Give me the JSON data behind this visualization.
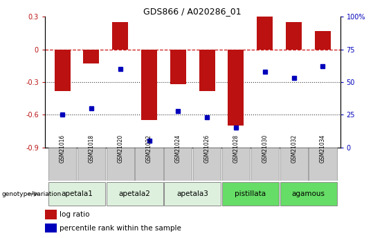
{
  "title": "GDS866 / A020286_01",
  "samples": [
    "GSM21016",
    "GSM21018",
    "GSM21020",
    "GSM21022",
    "GSM21024",
    "GSM21026",
    "GSM21028",
    "GSM21030",
    "GSM21032",
    "GSM21034"
  ],
  "log_ratio": [
    -0.38,
    -0.13,
    0.25,
    -0.65,
    -0.32,
    -0.38,
    -0.7,
    0.3,
    0.25,
    0.17
  ],
  "percentile_rank": [
    25,
    30,
    60,
    5,
    28,
    23,
    15,
    58,
    53,
    62
  ],
  "ylim_left": [
    -0.9,
    0.3
  ],
  "ylim_right": [
    0,
    100
  ],
  "yticks_left": [
    -0.9,
    -0.6,
    -0.3,
    0.0,
    0.3
  ],
  "yticks_right": [
    0,
    25,
    50,
    75,
    100
  ],
  "bar_color": "#bb1111",
  "dot_color": "#0000bb",
  "hline_color": "#cc1111",
  "dotted_line_color": "#333333",
  "groups": [
    {
      "label": "apetala1",
      "start": 0,
      "end": 2,
      "color": "#ddf0dd"
    },
    {
      "label": "apetala2",
      "start": 2,
      "end": 4,
      "color": "#ddf0dd"
    },
    {
      "label": "apetala3",
      "start": 4,
      "end": 6,
      "color": "#ddf0dd"
    },
    {
      "label": "pistillata",
      "start": 6,
      "end": 8,
      "color": "#66dd66"
    },
    {
      "label": "agamous",
      "start": 8,
      "end": 10,
      "color": "#66dd66"
    }
  ],
  "legend_items": [
    {
      "label": "log ratio",
      "color": "#bb1111"
    },
    {
      "label": "percentile rank within the sample",
      "color": "#0000bb"
    }
  ],
  "bar_width": 0.55,
  "dot_size": 4,
  "title_fontsize": 9,
  "tick_fontsize": 7,
  "group_fontsize": 7.5,
  "legend_fontsize": 7.5
}
